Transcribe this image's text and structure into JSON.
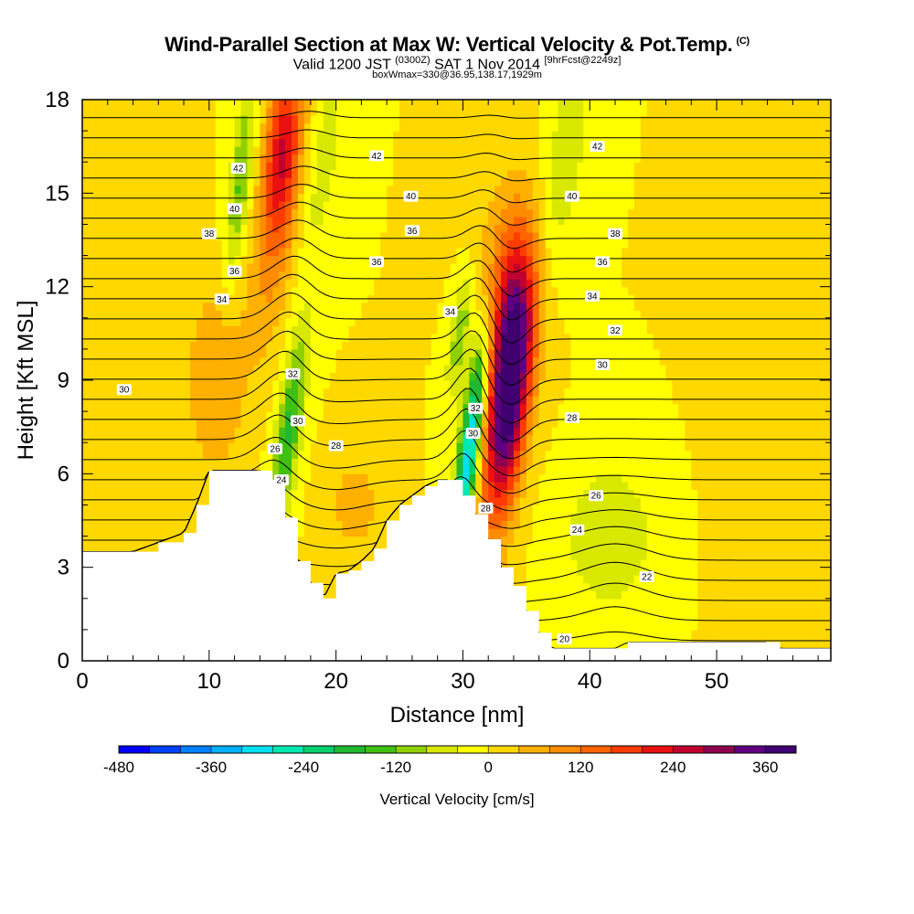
{
  "chart_data": {
    "type": "heatmap",
    "title": "Wind-Parallel Section at Max W: Vertical Velocity & Pot.Temp.",
    "title_mark": "(C)",
    "subtitle_main": "Valid 1200 JST",
    "subtitle_zone": "(0300Z)",
    "subtitle_date": "SAT 1 Nov 2014",
    "subtitle_fcst": "[9hrFcst@2249z]",
    "subtitle2": "boxWmax=330@36.95,138.17,1929m",
    "xlabel": "Distance [nm]",
    "ylabel": "Height [Kft MSL]",
    "xlim": [
      0,
      59
    ],
    "ylim": [
      0,
      18
    ],
    "x_ticks": [
      0,
      10,
      20,
      30,
      40,
      50
    ],
    "y_ticks": [
      0,
      3,
      6,
      9,
      12,
      15,
      18
    ],
    "colorbar": {
      "title": "Vertical Velocity [cm/s]",
      "min": -480,
      "max": 400,
      "step": 40,
      "tick_values": [
        -480,
        -360,
        -240,
        -120,
        0,
        120,
        240,
        360
      ],
      "colors": [
        "#0000ff",
        "#0040ff",
        "#0080ff",
        "#00b0ff",
        "#00e0f0",
        "#00e8b0",
        "#00d070",
        "#20b830",
        "#40c010",
        "#90d000",
        "#d8e800",
        "#ffff00",
        "#ffd800",
        "#ffb000",
        "#ff8c00",
        "#ff6400",
        "#ff3c00",
        "#e81010",
        "#c00030",
        "#900050",
        "#600080",
        "#400070"
      ]
    },
    "terrain": [
      [
        0,
        3.5
      ],
      [
        2,
        3.5
      ],
      [
        4,
        3.5
      ],
      [
        6,
        3.8
      ],
      [
        8,
        4.1
      ],
      [
        9,
        5
      ],
      [
        10,
        6.1
      ],
      [
        12,
        6.1
      ],
      [
        14,
        6.1
      ],
      [
        15,
        5.8
      ],
      [
        16,
        4.6
      ],
      [
        17,
        3.2
      ],
      [
        18,
        2.5
      ],
      [
        19,
        2.0
      ],
      [
        20,
        2.8
      ],
      [
        21,
        2.9
      ],
      [
        22,
        3.2
      ],
      [
        23,
        3.6
      ],
      [
        24,
        4.5
      ],
      [
        25,
        5.0
      ],
      [
        26,
        5.3
      ],
      [
        27,
        5.6
      ],
      [
        28,
        5.8
      ],
      [
        29,
        5.8
      ],
      [
        30,
        5.3
      ],
      [
        31,
        4.7
      ],
      [
        32,
        3.9
      ],
      [
        33,
        3.0
      ],
      [
        34,
        2.4
      ],
      [
        35,
        1.6
      ],
      [
        36,
        0.9
      ],
      [
        37,
        0.4
      ],
      [
        38,
        0.4
      ],
      [
        40,
        0.4
      ],
      [
        42,
        0.4
      ],
      [
        43,
        0.6
      ],
      [
        45,
        0.6
      ],
      [
        48,
        0.6
      ],
      [
        50,
        0.6
      ],
      [
        52,
        0.6
      ],
      [
        54,
        0.6
      ],
      [
        55,
        0.4
      ],
      [
        57,
        0.4
      ],
      [
        59,
        0.4
      ]
    ],
    "velocity_features": [
      {
        "x": 33.6,
        "z": 8.5,
        "sx": 1.1,
        "sz": 2.8,
        "tilt": 0.25,
        "value": 380
      },
      {
        "x": 33.5,
        "z": 11.5,
        "sx": 1.6,
        "sz": 2.5,
        "tilt": 0.1,
        "value": 160
      },
      {
        "x": 30.6,
        "z": 7.0,
        "sx": 0.6,
        "sz": 2.6,
        "tilt": 0.3,
        "value": -330
      },
      {
        "x": 29.8,
        "z": 10.5,
        "sx": 0.6,
        "sz": 1.4,
        "tilt": 0.3,
        "value": -120
      },
      {
        "x": 16.3,
        "z": 7.5,
        "sx": 0.7,
        "sz": 2.2,
        "tilt": 0.3,
        "value": -170
      },
      {
        "x": 12.5,
        "z": 15.5,
        "sx": 0.6,
        "sz": 2.2,
        "tilt": 0.25,
        "value": -130
      },
      {
        "x": 15.8,
        "z": 16.5,
        "sx": 1.0,
        "sz": 2.0,
        "tilt": 0.2,
        "value": 220
      },
      {
        "x": 15.0,
        "z": 13.0,
        "sx": 1.2,
        "sz": 2.5,
        "tilt": 0.3,
        "value": 80
      },
      {
        "x": 19.0,
        "z": 16.0,
        "sx": 0.9,
        "sz": 2.5,
        "tilt": 0.3,
        "value": -60
      },
      {
        "x": 10.5,
        "z": 9.0,
        "sx": 1.6,
        "sz": 2.2,
        "tilt": 0.0,
        "value": 80
      },
      {
        "x": 38.0,
        "z": 16.0,
        "sx": 1.2,
        "sz": 2.5,
        "tilt": 0.3,
        "value": -70
      },
      {
        "x": 41.5,
        "z": 4.0,
        "sx": 2.5,
        "sz": 1.7,
        "tilt": 0.0,
        "value": -80
      },
      {
        "x": 21.5,
        "z": 5.0,
        "sx": 1.5,
        "sz": 1.2,
        "tilt": 0.0,
        "value": 60
      },
      {
        "x": 56.0,
        "z": 7.0,
        "sx": 3.0,
        "sz": 4.0,
        "tilt": 0.0,
        "value": 40
      },
      {
        "x": 3.0,
        "z": 8.0,
        "sx": 2.5,
        "sz": 3.0,
        "tilt": 0.0,
        "value": 30
      }
    ],
    "theta_contours": {
      "min": 18,
      "max": 46,
      "interval": 1,
      "labeled": [
        {
          "value": 42,
          "x": 12.3,
          "z": 15.8
        },
        {
          "value": 40,
          "x": 12.0,
          "z": 14.5
        },
        {
          "value": 38,
          "x": 10.0,
          "z": 13.7
        },
        {
          "value": 36,
          "x": 12.0,
          "z": 12.5
        },
        {
          "value": 34,
          "x": 11.0,
          "z": 11.6
        },
        {
          "value": 30,
          "x": 3.3,
          "z": 8.7
        },
        {
          "value": 32,
          "x": 16.6,
          "z": 9.2
        },
        {
          "value": 30,
          "x": 17.0,
          "z": 7.7
        },
        {
          "value": 28,
          "x": 20.0,
          "z": 6.9
        },
        {
          "value": 26,
          "x": 15.2,
          "z": 6.8
        },
        {
          "value": 24,
          "x": 15.7,
          "z": 5.8
        },
        {
          "value": 42,
          "x": 23.2,
          "z": 16.2
        },
        {
          "value": 40,
          "x": 25.9,
          "z": 14.9
        },
        {
          "value": 36,
          "x": 26.0,
          "z": 13.8
        },
        {
          "value": 36,
          "x": 23.2,
          "z": 12.8
        },
        {
          "value": 34,
          "x": 29.0,
          "z": 11.2
        },
        {
          "value": 32,
          "x": 31.0,
          "z": 8.1
        },
        {
          "value": 30,
          "x": 30.8,
          "z": 7.3
        },
        {
          "value": 28,
          "x": 31.8,
          "z": 4.9
        },
        {
          "value": 42,
          "x": 40.6,
          "z": 16.5
        },
        {
          "value": 40,
          "x": 38.6,
          "z": 14.9
        },
        {
          "value": 38,
          "x": 42.0,
          "z": 13.7
        },
        {
          "value": 36,
          "x": 41.0,
          "z": 12.8
        },
        {
          "value": 34,
          "x": 40.2,
          "z": 11.7
        },
        {
          "value": 32,
          "x": 42.0,
          "z": 10.6
        },
        {
          "value": 30,
          "x": 41.0,
          "z": 9.5
        },
        {
          "value": 28,
          "x": 38.6,
          "z": 7.8
        },
        {
          "value": 26,
          "x": 40.5,
          "z": 5.3
        },
        {
          "value": 24,
          "x": 39.0,
          "z": 4.2
        },
        {
          "value": 22,
          "x": 44.5,
          "z": 2.7
        },
        {
          "value": 20,
          "x": 38.0,
          "z": 0.7
        }
      ]
    },
    "grid": false,
    "legend": "bottom"
  }
}
